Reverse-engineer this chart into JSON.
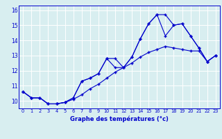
{
  "xlabel": "Graphe des températures (°c)",
  "background_color": "#d8eef0",
  "grid_color": "#ffffff",
  "line_color": "#0000cc",
  "xlim": [
    -0.5,
    23.5
  ],
  "ylim": [
    9.5,
    16.3
  ],
  "yticks": [
    10,
    11,
    12,
    13,
    14,
    15,
    16
  ],
  "xticks": [
    0,
    1,
    2,
    3,
    4,
    5,
    6,
    7,
    8,
    9,
    10,
    11,
    12,
    13,
    14,
    15,
    16,
    17,
    18,
    19,
    20,
    21,
    22,
    23
  ],
  "line1_x": [
    0,
    1,
    2,
    3,
    4,
    5,
    6,
    7,
    8,
    9,
    10,
    11,
    12,
    13,
    14,
    15,
    16,
    17,
    18,
    19,
    20,
    21,
    22,
    23
  ],
  "line1_y": [
    10.6,
    10.2,
    10.2,
    9.8,
    9.8,
    9.9,
    10.1,
    10.4,
    10.8,
    11.1,
    11.5,
    11.9,
    12.2,
    12.5,
    12.9,
    13.2,
    13.4,
    13.6,
    13.5,
    13.4,
    13.3,
    13.3,
    12.6,
    13.0
  ],
  "line2_x": [
    0,
    1,
    2,
    3,
    4,
    5,
    6,
    7,
    8,
    9,
    10,
    11,
    12,
    13,
    14,
    15,
    16,
    17,
    18,
    19,
    20,
    21,
    22,
    23
  ],
  "line2_y": [
    10.6,
    10.2,
    10.2,
    9.8,
    9.8,
    9.9,
    10.2,
    11.3,
    11.5,
    11.8,
    12.8,
    12.8,
    12.2,
    12.9,
    14.1,
    15.1,
    15.7,
    14.3,
    15.0,
    15.1,
    14.3,
    13.5,
    12.6,
    13.0
  ],
  "line3_x": [
    0,
    1,
    2,
    3,
    4,
    5,
    6,
    7,
    8,
    9,
    10,
    11,
    12,
    13,
    14,
    15,
    16,
    17,
    18,
    19,
    20,
    21,
    22,
    23
  ],
  "line3_y": [
    10.6,
    10.2,
    10.2,
    9.8,
    9.8,
    9.9,
    10.2,
    11.3,
    11.5,
    11.8,
    12.8,
    12.2,
    12.2,
    12.9,
    14.1,
    15.1,
    15.7,
    15.7,
    15.0,
    15.1,
    14.3,
    13.5,
    12.6,
    13.0
  ],
  "marker": "+",
  "markersize": 3,
  "linewidth": 0.8
}
